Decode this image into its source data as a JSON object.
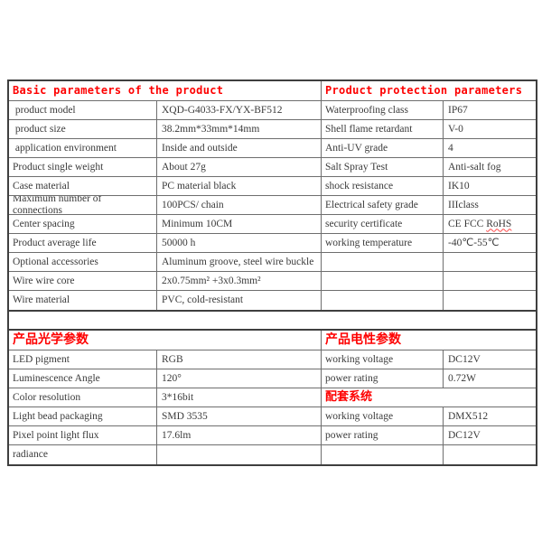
{
  "colors": {
    "header_red": "#fe0000",
    "border_dark": "#3f3f3f",
    "border_inner": "#6e6e6e",
    "text": "#3a3a3a",
    "background": "#ffffff"
  },
  "bands": [
    {
      "name": "table-basic-protection",
      "left": {
        "header": "Basic parameters of the product",
        "header_style": "latin",
        "rows": [
          {
            "label": " product model",
            "value": "XQD-G4033-FX/YX-BF512"
          },
          {
            "label": " product size",
            "value": "38.2mm*33mm*14mm"
          },
          {
            "label": " application environment",
            "value": "Inside and outside"
          },
          {
            "label": "Product single weight",
            "value": "About 27g"
          },
          {
            "label": "Case material",
            "value": "PC material black"
          },
          {
            "label": "Maximum number of connections",
            "value": "100PCS/ chain"
          },
          {
            "label": "Center spacing",
            "value": "Minimum 10CM"
          },
          {
            "label": "Product average life",
            "value": "50000 h"
          },
          {
            "label": "Optional accessories",
            "value": "Aluminum groove, steel wire buckle"
          },
          {
            "label": "Wire wire core",
            "value": "2x0.75mm² +3x0.3mm²"
          },
          {
            "label": "Wire material",
            "value": "PVC, cold-resistant"
          }
        ]
      },
      "right": {
        "header": "Product protection parameters",
        "header_style": "latin",
        "rows": [
          {
            "label": "Waterproofing class",
            "value": "IP67"
          },
          {
            "label": "Shell flame retardant",
            "value": "V-0"
          },
          {
            "label": "Anti-UV grade",
            "value": "4"
          },
          {
            "label": "Salt Spray Test",
            "value": "Anti-salt fog"
          },
          {
            "label": "shock resistance",
            "value": "IK10"
          },
          {
            "label": "Electrical safety grade",
            "value": "IIIclass"
          },
          {
            "label": "security certificate",
            "value_prefix": "CE FCC ",
            "value_squiggle": "RoHS"
          },
          {
            "label": "working temperature",
            "value": "-40℃-55℃"
          },
          {
            "label": "",
            "value": ""
          },
          {
            "label": "",
            "value": ""
          },
          {
            "label": "",
            "value": ""
          }
        ]
      }
    },
    {
      "name": "table-optical-electrical",
      "left": {
        "header": "产品光学参数",
        "header_style": "cjk",
        "rows": [
          {
            "label": "LED pigment",
            "value": "RGB"
          },
          {
            "label": "Luminescence Angle",
            "value": "120°"
          },
          {
            "label": "Color resolution",
            "value": "3*16bit"
          },
          {
            "label": "Light bead packaging",
            "value": "SMD 3535"
          },
          {
            "label": "Pixel point light flux",
            "value": "17.6lm"
          },
          {
            "label": "radiance",
            "value": ""
          }
        ]
      },
      "right": {
        "header": "产品电性参数",
        "header_style": "cjk",
        "rows": [
          {
            "label": "working voltage",
            "value": "DC12V"
          },
          {
            "label": "power rating",
            "value": "0.72W"
          },
          {
            "section": "配套系统"
          },
          {
            "label": "working voltage",
            "value": "DMX512"
          },
          {
            "label": "power rating",
            "value": "DC12V"
          },
          {
            "label": "",
            "value": ""
          }
        ]
      }
    }
  ]
}
